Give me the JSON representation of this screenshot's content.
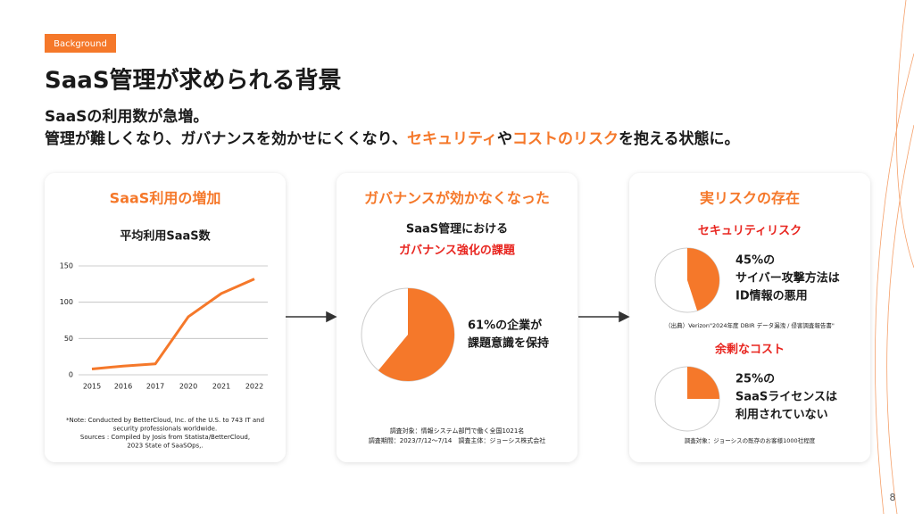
{
  "tag": "Background",
  "title": "SaaS管理が求められる背景",
  "subtitle": [
    [
      {
        "text": "SaaSの利用数が急増。",
        "highlight": false
      }
    ],
    [
      {
        "text": "管理が難しくなり、ガバナンスを効かせにくくなり、",
        "highlight": false
      },
      {
        "text": "セキュリティ",
        "highlight": true
      },
      {
        "text": "や",
        "highlight": false
      },
      {
        "text": "コストのリスク",
        "highlight": true
      },
      {
        "text": "を抱える状態に。",
        "highlight": false
      }
    ]
  ],
  "chart_data": {
    "type": "line",
    "heading": "SaaS利用の増加",
    "title": "平均利用SaaS数",
    "categories": [
      "2015",
      "2016",
      "2017",
      "2020",
      "2021",
      "2022"
    ],
    "values": [
      8,
      12,
      15,
      80,
      112,
      132
    ],
    "color": "#f5782a",
    "ylim": [
      0,
      150
    ],
    "yticks": [
      0,
      50,
      100,
      150
    ],
    "grid": true,
    "note": [
      "*Note: Conducted by BetterCloud, Inc. of the U.S. to 743 IT and",
      "security professionals worldwide.",
      "Sources : Compiled by Josis from Statista/BetterCloud,",
      "2023 State of SaaSOps,."
    ]
  },
  "governance": {
    "heading": "ガバナンスが効かなくなった",
    "lead": "SaaS管理における",
    "lead_red": "ガバナンス強化の課題",
    "pie": {
      "value": 61,
      "label_lines": [
        "61%の企業が",
        "課題意識を保持"
      ]
    },
    "footnotes": [
      "調査対象：情報システム部門で働く全国1021名",
      "調査期間：2023/7/12〜7/14　調査主体：ジョーシス株式会社"
    ]
  },
  "risk": {
    "heading": "実リスクの存在",
    "items": [
      {
        "title": "セキュリティリスク",
        "pie": {
          "value": 45,
          "label_lines": [
            "45%の",
            "サイバー攻撃方法は",
            "ID情報の悪用"
          ]
        },
        "source": "（出典）Verizon\"2024年度 DBIR データ漏洩 / 侵害調査報告書\""
      },
      {
        "title": "余剰なコスト",
        "pie": {
          "value": 25,
          "label_lines": [
            "25%の",
            "SaaSライセンスは",
            "利用されていない"
          ]
        },
        "source": "調査対象：ジョーシスの既存のお客様1000社程度"
      }
    ]
  },
  "page": "8"
}
